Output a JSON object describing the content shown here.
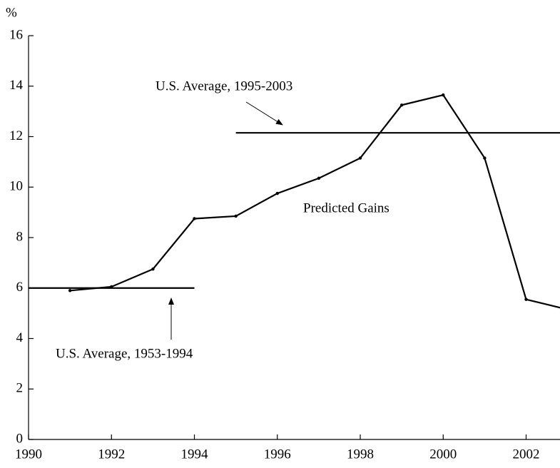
{
  "chart_data": {
    "type": "line",
    "y_label": "%",
    "x": [
      1991,
      1992,
      1993,
      1994,
      1995,
      1996,
      1997,
      1998,
      1999,
      2000,
      2001,
      2002,
      2003
    ],
    "series": [
      {
        "name": "Predicted Gains",
        "color": "#000000",
        "values": [
          5.9,
          6.05,
          6.75,
          8.75,
          8.85,
          9.75,
          10.35,
          11.15,
          13.25,
          13.65,
          11.15,
          5.55,
          5.15
        ]
      }
    ],
    "reference_lines": [
      {
        "label": "U.S. Average, 1953-1994",
        "value": 6.0,
        "x": [
          1990,
          1994
        ]
      },
      {
        "label": "U.S. Average, 1995-2003",
        "value": 12.15,
        "x": [
          1995,
          2003
        ]
      }
    ],
    "xlim": [
      1990,
      2002.8
    ],
    "xticks": [
      1990,
      1992,
      1994,
      1996,
      1998,
      2000,
      2002
    ],
    "ylim": [
      0,
      16
    ],
    "yticks": [
      0,
      2,
      4,
      6,
      8,
      10,
      12,
      14,
      16
    ]
  }
}
